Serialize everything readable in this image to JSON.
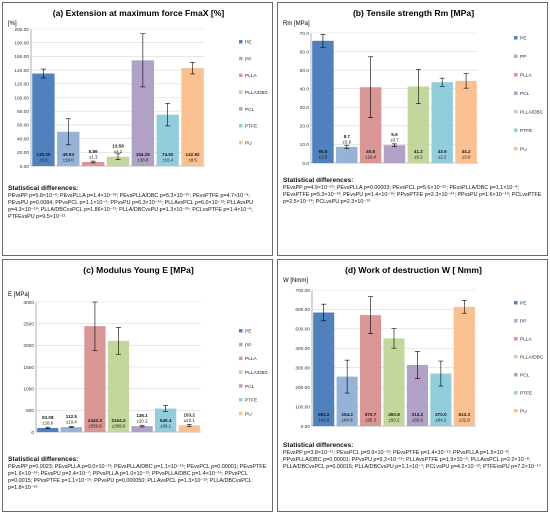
{
  "colors": {
    "PE": "#4f81bd",
    "PP": "#95b3d7",
    "PLLA": "#d99694",
    "PLLA/DBC": "#c3d69b",
    "PCL": "#b2a1c7",
    "PTFE": "#92cddc",
    "PU": "#fac090",
    "grid": "#d9d9d9",
    "axis": "#7f7f7f",
    "error_bar": "#000000"
  },
  "chart_data": [
    {
      "type": "bar",
      "title": "(a) Extension at maximum force FmaX [%]",
      "ylabel": "[%]",
      "xlabel": "",
      "ylim": [
        0,
        200
      ],
      "yticks": [
        "0.00",
        "20.00",
        "40.00",
        "60.00",
        "80.00",
        "100.00",
        "120.00",
        "140.00",
        "160.00",
        "180.00",
        "200.00"
      ],
      "tick_step": 20,
      "grid": true,
      "legend": "right",
      "categories": [
        "PE",
        "PP",
        "PLLA",
        "PLLA/DBC",
        "PCL",
        "PTFE",
        "PU"
      ],
      "values": [
        135.0,
        49.93,
        5.89,
        13.58,
        154.25,
        74.92,
        142.92
      ],
      "errors": [
        6.5,
        19.0,
        1.3,
        4.2,
        38.8,
        16.4,
        8.5
      ],
      "value_labels": [
        "135.00",
        "49.93",
        "5.89",
        "13.58",
        "154.25",
        "74.92",
        "142.92"
      ],
      "error_labels": [
        "±6.5",
        "±19.0",
        "±1.3",
        "±4.2",
        "±38.8",
        "±16.4",
        "±8.5"
      ],
      "stats_title": "Statistical differences:",
      "stats_text": "PEvsPP p=5.8×10⁻⁶; PEvsPLLA p=1.4×10⁻¹⁸; PEvsPLLA/DBC p=5.3×10⁻²⁵; PEvsPTFE p=4.7×10⁻⁹; PEvsPU p=0.0084; PPvsPCL p=1.1×10⁻⁵; PPvsPU p=6.3×10⁻¹⁶; PLLAvsPCL p=6.0×10⁻¹²; PLLAvsPU p=4.3×10⁻¹⁹; PLLA/DBCvsPCL p=1.86×10⁻¹¹; PLLA/DBCvsPU p=1.3×10⁻²⁵; PCLvsPTFE p=1.4×10⁻⁶; PTFEvsPU p=9.5×10⁻¹²"
    },
    {
      "type": "bar",
      "title": "(b) Tensile strength Rm [MPa]",
      "ylabel": "Rm [MPa]",
      "xlabel": "",
      "ylim": [
        0,
        70
      ],
      "yticks": [
        "0.0",
        "10.0",
        "20.0",
        "30.0",
        "40.0",
        "50.0",
        "60.0",
        "70.0"
      ],
      "tick_step": 10,
      "grid": true,
      "legend": "right",
      "categories": [
        "PE",
        "PP",
        "PLLA",
        "PCL",
        "PLLA/DBC",
        "PTFE",
        "PU"
      ],
      "values": [
        65.8,
        8.7,
        40.8,
        9.6,
        41.2,
        43.5,
        44.2
      ],
      "errors": [
        3.5,
        0.9,
        16.4,
        0.7,
        9.2,
        2.2,
        3.9
      ],
      "value_labels": [
        "65.8",
        "8.7",
        "40.8",
        "9.6",
        "41.2",
        "43.5",
        "44.2"
      ],
      "error_labels": [
        "±3.5",
        "±0.9",
        "±16.4",
        "±0.7",
        "±9.2",
        "±2.2",
        "±3.9"
      ],
      "stats_title": "Statistical differences:",
      "stats_text": "PEvsPP p=4.9×10⁻²⁵; PEvsPLLA p=0.00003; PEvsPCL p=5.6×10⁻²⁵; PEvsPLLA/DBC p=1.1×10⁻⁸; PEvsPTFE p=5.3×10⁻¹³; PEvsPU p=1.4×10⁻¹²; PPvsPTFE p=2.3×10⁻²⁴; PPvsPU p=1.6×10⁻¹⁹; PCLvsPTFE p=2.5×10⁻²⁴; PCLvsPU p=2.3×10⁻¹⁹"
    },
    {
      "type": "bar",
      "title": "(c) Modulus Young E [MPa]",
      "ylabel": "E [MPa]",
      "xlabel": "",
      "ylim": [
        0,
        3000
      ],
      "yticks": [
        "0",
        "500",
        "1000",
        "1500",
        "2000",
        "2500",
        "3000"
      ],
      "tick_step": 500,
      "grid": true,
      "legend": "right",
      "categories": [
        "PE",
        "PP",
        "PLLA",
        "PLLA/DBC",
        "PCL",
        "PTFE",
        "PU"
      ],
      "values": [
        93.08,
        112.5,
        2443.3,
        2104.2,
        136.1,
        540.4,
        153.2
      ],
      "errors": [
        18.6,
        10.4,
        559.9,
        309.0,
        20.2,
        68.1,
        23.1
      ],
      "value_labels": [
        "93.08",
        "112.5",
        "2443.3",
        "2104.2",
        "136.1",
        "540.4",
        "153.2"
      ],
      "error_labels": [
        "±18.6",
        "±10.4",
        "±559.9",
        "±309.0",
        "±20.2",
        "±68.1",
        "±23.1"
      ],
      "stats_title": "Statistical differences:",
      "stats_text": "PEvsPP p=0.0023; PEvsPLLA p=9.0×10⁻¹³; PEvsPLLA/DBC p=1.1×10⁻¹⁶; PEvsPCL p=0.00001; PEvsPTFE p=1.6×10⁻¹⁶; PEvsPU p=2.4×10⁻⁷; PPvsPLLA p=1.0×10⁻¹²; PPvsPLLA/DBC p=1.4×10⁻¹⁶; PPvsPCL p=0.0015; PPvsPTFE p=1.1×10⁻¹⁵; PPvsPU p=0.000050; PLLAvsPCL p=1.3×10⁻¹²; PLLA/DBCvsPCL p=1.8×10⁻¹⁶"
    },
    {
      "type": "bar",
      "title": "(d) Work  of destruction W [ Nmm]",
      "ylabel": "W [Nmm]",
      "xlabel": "",
      "ylim": [
        0,
        700
      ],
      "yticks": [
        "0.00",
        "100.00",
        "200.00",
        "300.00",
        "400.00",
        "500.00",
        "600.00",
        "700.00"
      ],
      "tick_step": 100,
      "grid": true,
      "legend": "right",
      "categories": [
        "PE",
        "PP",
        "PLLA",
        "PLLA/DBC",
        "PCL",
        "PTFE",
        "PU"
      ],
      "values": [
        584.2,
        254.2,
        570.7,
        450.8,
        314.2,
        270.0,
        613.3
      ],
      "errors": [
        42.9,
        84.8,
        95.3,
        50.2,
        69.6,
        64.2,
        32.8
      ],
      "value_labels": [
        "584.2",
        "254.2",
        "570.7",
        "450.8",
        "314.2",
        "270.0",
        "613.3"
      ],
      "error_labels": [
        "±42.9",
        "±84.8",
        "±95.3",
        "±50.2",
        "±69.6",
        "±64.2",
        "±32.8"
      ],
      "stats_title": "Statistical differences:",
      "stats_text": "PEvsPP p=3.8×10⁻¹¹; PEvsPCL p=9.9×10⁻¹²; PEvsPTFE p=1.4×10⁻¹¹; PPvsPLLA p=1.5×10⁻⁸; PPvsPLLA/DBC p=0.00001; PPvsPU p=9.2×10⁻¹⁶; PLLAvsPTFE p=1.9×10⁻⁸; PLLAvsPCL p=2.2×10⁻⁸; PLLA/DBCvsPCL p=0.00015; PLLA/DBCvsPU p=1.1×10⁻⁷; PCLvsPU p=4.2×10⁻¹²; PTFEvsPU p=7.2×10⁻¹⁴"
    }
  ]
}
